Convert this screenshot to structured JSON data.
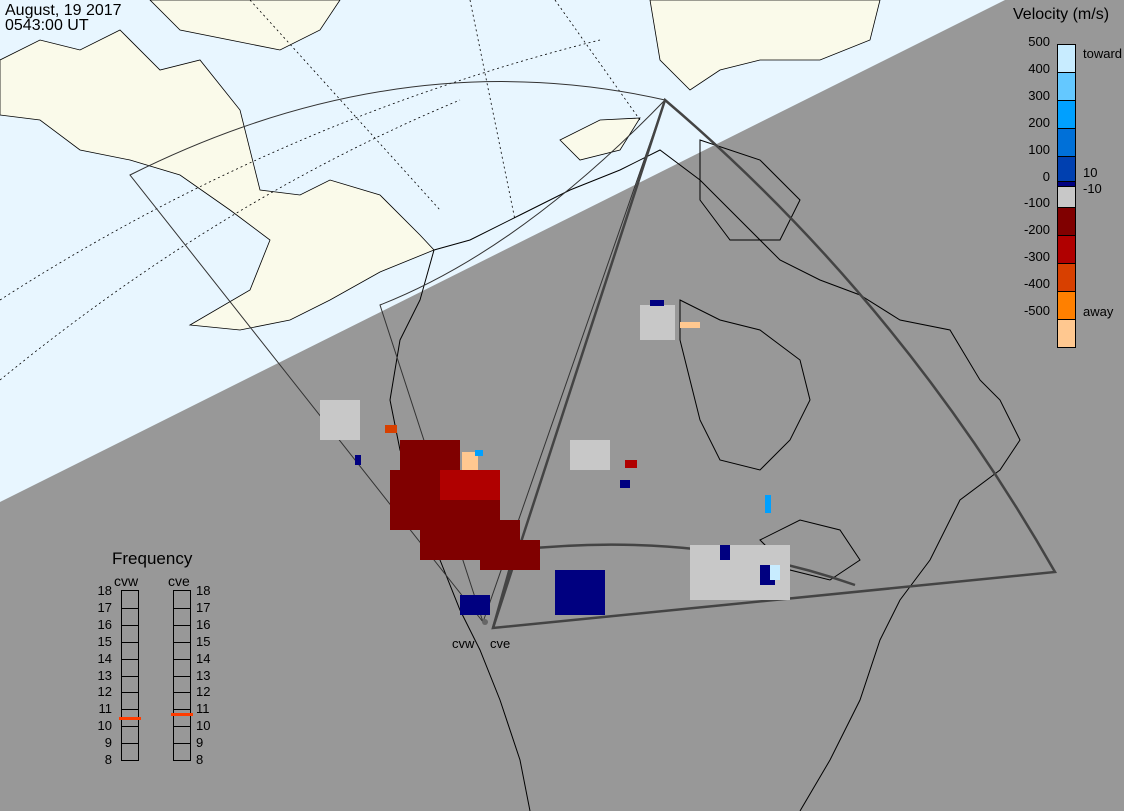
{
  "header": {
    "date": "August, 19 2017",
    "time": "0543:00 UT"
  },
  "legend": {
    "title": "Velocity (m/s)",
    "ticks": [
      "500",
      "400",
      "300",
      "200",
      "100",
      "0",
      "-100",
      "-200",
      "-300",
      "-400",
      "-500"
    ],
    "toward_label": "toward",
    "away_label": "away",
    "pos_threshold": "10",
    "neg_threshold": "-10",
    "colors": [
      "#c8ecff",
      "#64c8ff",
      "#00a0ff",
      "#0070d8",
      "#0040b0",
      "#000080",
      "#c8c8c8",
      "#800000",
      "#b00000",
      "#d84000",
      "#ff8000",
      "#ffc890"
    ]
  },
  "frequency": {
    "title": "Frequency",
    "radars": [
      {
        "name": "cvw",
        "value_mhz": 10.5
      },
      {
        "name": "cve",
        "value_mhz": 10.7
      }
    ],
    "ticks": [
      "18",
      "17",
      "16",
      "15",
      "14",
      "13",
      "12",
      "11",
      "10",
      "9",
      "8"
    ],
    "range_mhz": [
      8,
      18
    ]
  },
  "radar_labels": [
    "cvw",
    "cve"
  ],
  "colors": {
    "night": "#989898",
    "day_ocean": "#e8f6ff",
    "day_land": "#fafaea",
    "ground_scatter": "#c8c8c8",
    "frequency_marker": "#ff3c00"
  }
}
